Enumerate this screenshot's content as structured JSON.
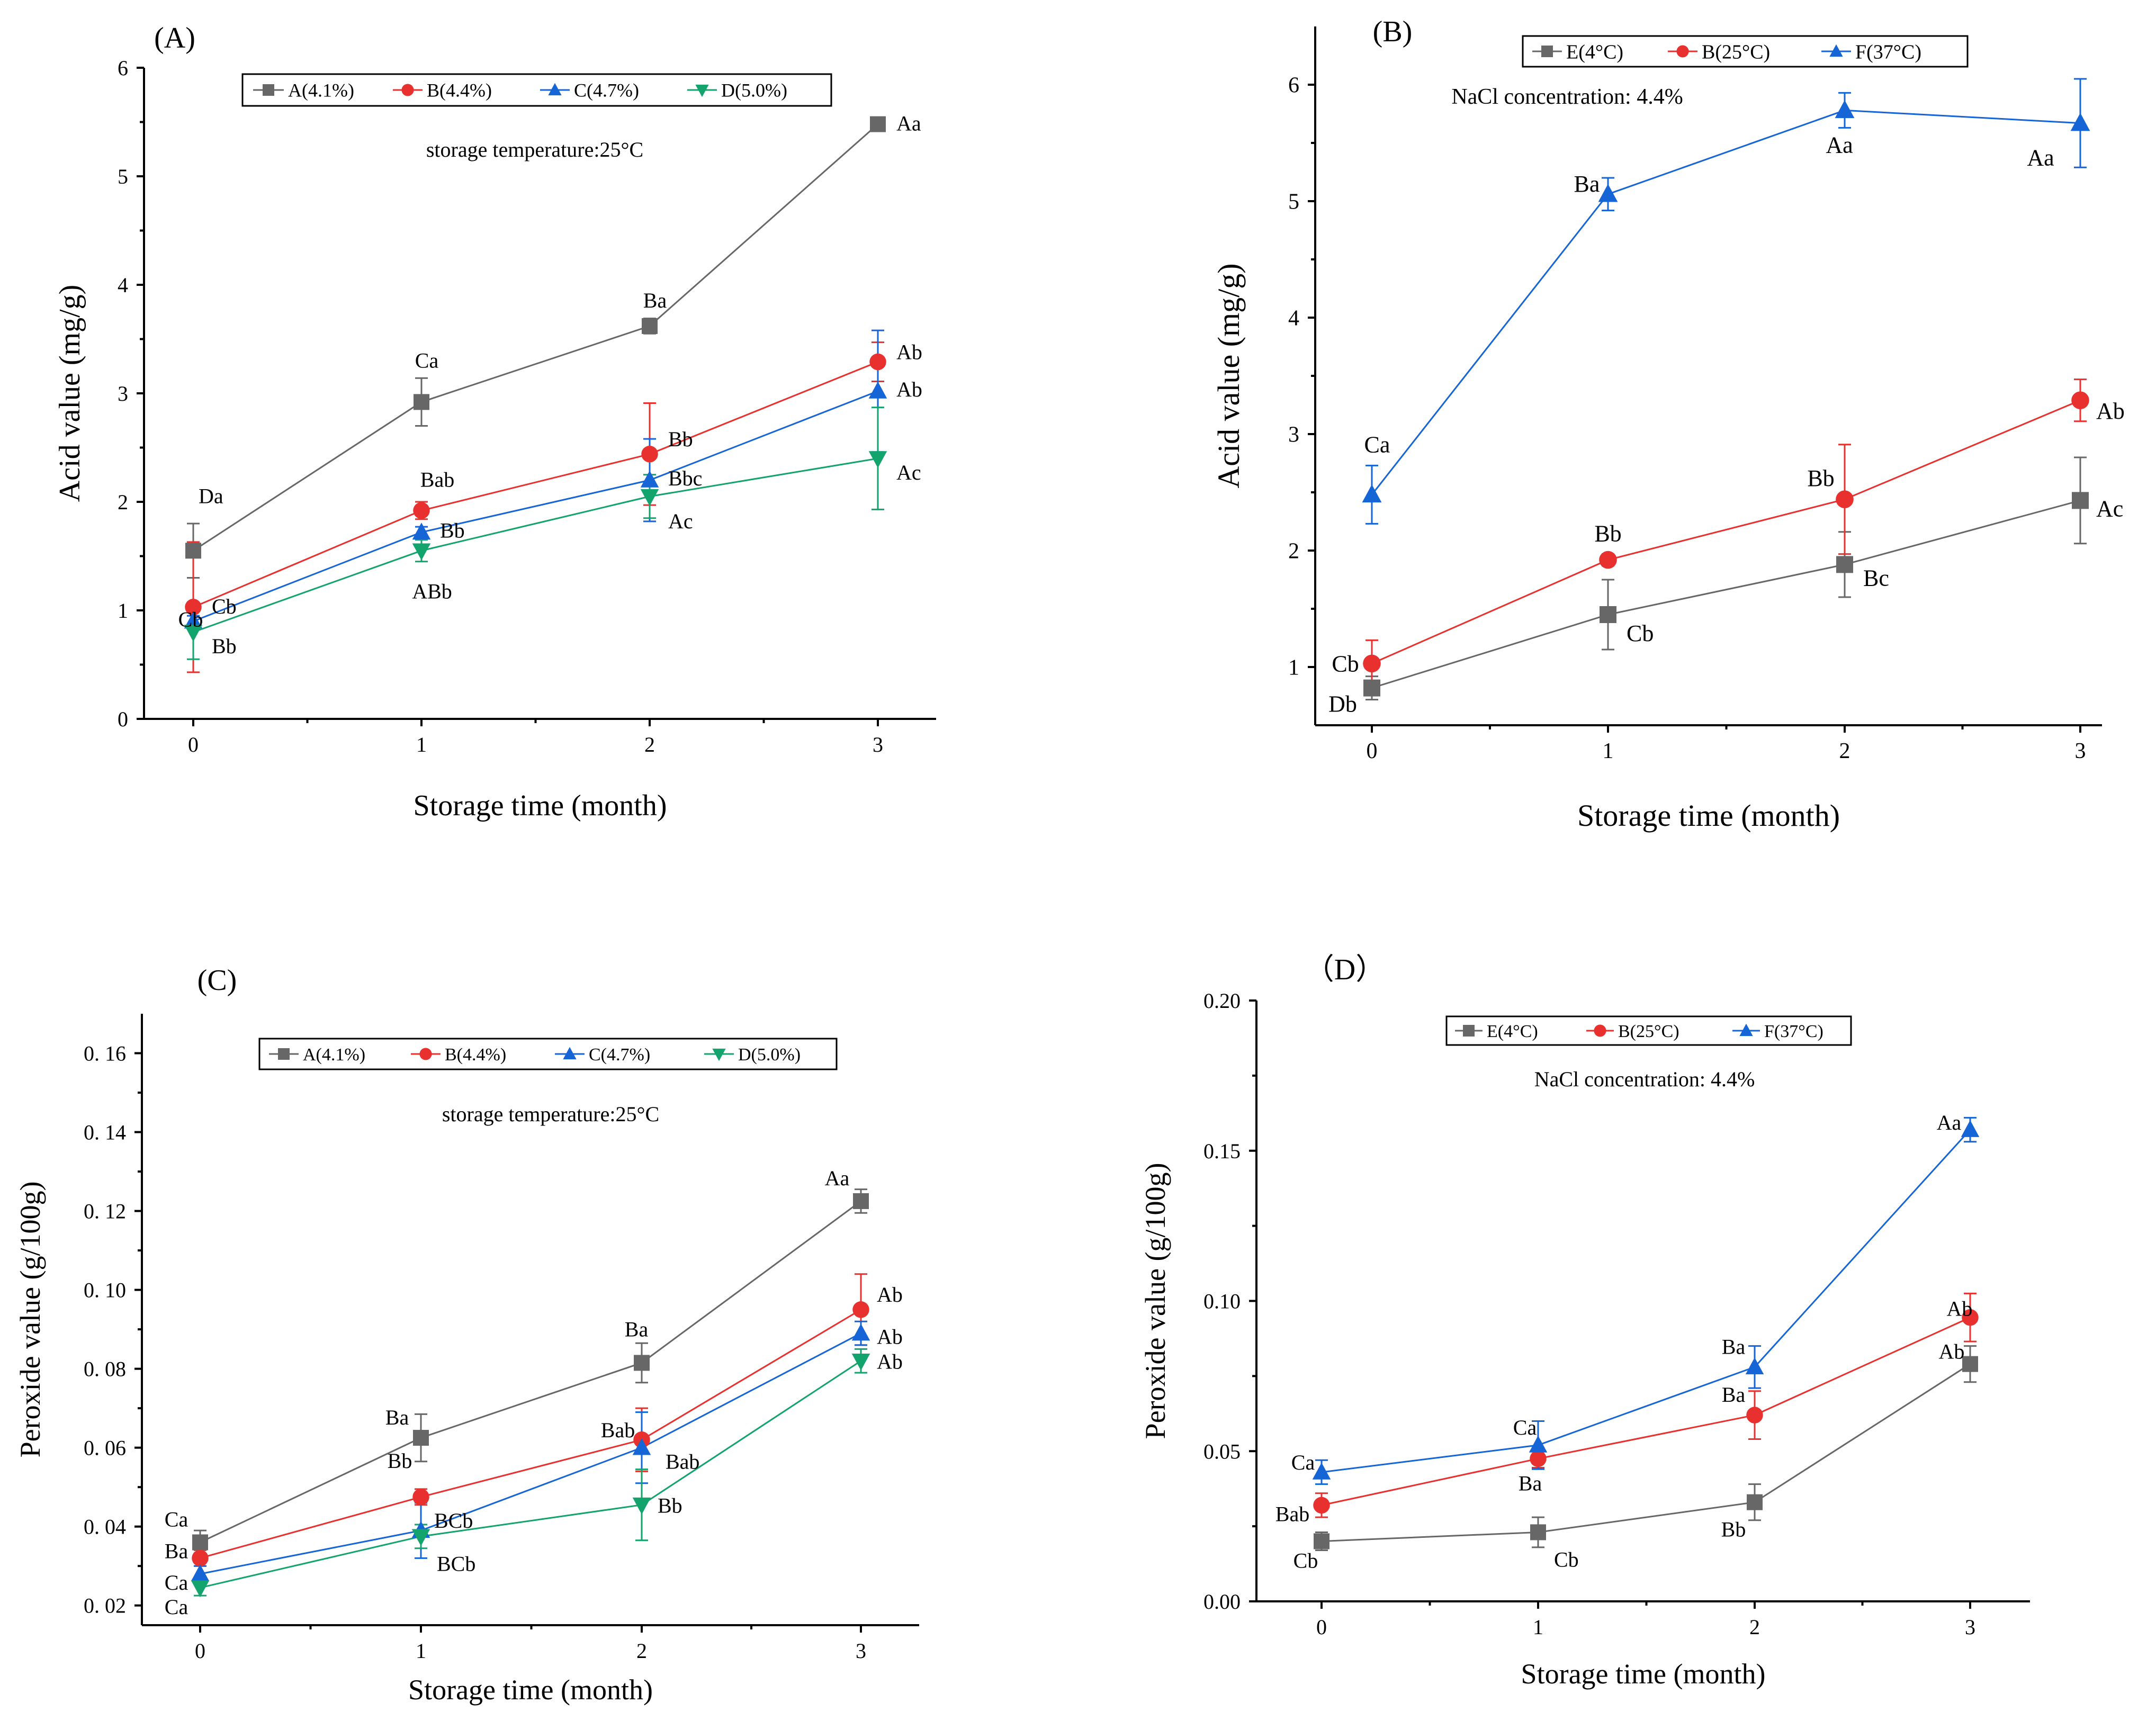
{
  "colors": {
    "A": "#676767",
    "E": "#676767",
    "B": "#e8302f",
    "C": "#1565d6",
    "F": "#1565d6",
    "D": "#13a36c"
  },
  "chart_data": [
    {
      "id": "A",
      "type": "line",
      "panel_label": "(A)",
      "xlabel": "Storage time (month)",
      "ylabel": "Acid value (mg/g)",
      "categories": [
        "0",
        "1",
        "2",
        "3"
      ],
      "ylim": [
        0,
        6
      ],
      "yticks": [
        0,
        1,
        2,
        3,
        4,
        5,
        6
      ],
      "ytick_labels": [
        "0",
        "1",
        "2",
        "3",
        "4",
        "5",
        "6"
      ],
      "annotation": "storage temperature:25°C",
      "legend_position": "top",
      "series": [
        {
          "key": "A",
          "name": "A(4.1%)",
          "marker": "square",
          "values": [
            1.55,
            2.92,
            3.62,
            5.48
          ],
          "errors": [
            0.25,
            0.22,
            0.07,
            0
          ],
          "letters": [
            "Da",
            "Ca",
            "Ba",
            "Aa"
          ]
        },
        {
          "key": "B",
          "name": "B(4.4%)",
          "marker": "circle",
          "values": [
            1.03,
            1.92,
            2.44,
            3.29
          ],
          "errors": [
            0.6,
            0.08,
            0.47,
            0.18
          ],
          "letters": [
            "Cb",
            "Bab",
            "Bb",
            "Ab"
          ]
        },
        {
          "key": "C",
          "name": "C(4.7%)",
          "marker": "triangle-up",
          "values": [
            0.9,
            1.72,
            2.2,
            3.02
          ],
          "errors": [
            0.05,
            0.05,
            0.38,
            0.56
          ],
          "letters": [
            "Cb",
            "Bb",
            "Bbc",
            "Ab"
          ]
        },
        {
          "key": "D",
          "name": "D(5.0%)",
          "marker": "triangle-down",
          "values": [
            0.8,
            1.55,
            2.05,
            2.4
          ],
          "errors": [
            0.25,
            0.1,
            0.2,
            0.47
          ],
          "letters": [
            "Bb",
            "ABb",
            "Ac",
            "Ac"
          ]
        }
      ]
    },
    {
      "id": "B",
      "type": "line",
      "panel_label": "(B)",
      "xlabel": "Storage time (month)",
      "ylabel": "Acid value (mg/g)",
      "categories": [
        "0",
        "1",
        "2",
        "3"
      ],
      "ylim": [
        0.5,
        6.5
      ],
      "yticks": [
        1,
        2,
        3,
        4,
        5,
        6
      ],
      "ytick_labels": [
        "1",
        "2",
        "3",
        "4",
        "5",
        "6"
      ],
      "annotation": "NaCl concentration: 4.4%",
      "legend_position": "top",
      "series": [
        {
          "key": "E",
          "name": "E(4°C)",
          "marker": "square",
          "values": [
            0.82,
            1.45,
            1.88,
            2.43
          ],
          "errors": [
            0.1,
            0.3,
            0.28,
            0.37
          ],
          "letters": [
            "Db",
            "Cb",
            "Bc",
            "Ac"
          ]
        },
        {
          "key": "B",
          "name": "B(25°C)",
          "marker": "circle",
          "values": [
            1.03,
            1.92,
            2.44,
            3.29
          ],
          "errors": [
            0.2,
            0.05,
            0.47,
            0.18
          ],
          "letters": [
            "Cb",
            "Bb",
            "Bb",
            "Ab"
          ]
        },
        {
          "key": "F",
          "name": "F(37°C)",
          "marker": "triangle-up",
          "values": [
            2.48,
            5.06,
            5.78,
            5.67
          ],
          "errors": [
            0.25,
            0.14,
            0.15,
            0.38
          ],
          "letters": [
            "Ca",
            "Ba",
            "Aa",
            "Aa"
          ]
        }
      ]
    },
    {
      "id": "C",
      "type": "line",
      "panel_label": "(C)",
      "xlabel": "Storage time (month)",
      "ylabel": "Peroxide value (g/100g)",
      "categories": [
        "0",
        "1",
        "2",
        "3"
      ],
      "ylim": [
        0.015,
        0.17
      ],
      "yticks": [
        0.02,
        0.04,
        0.06,
        0.08,
        0.1,
        0.12,
        0.14,
        0.16
      ],
      "ytick_labels": [
        "0. 02",
        "0. 04",
        "0. 06",
        "0. 08",
        "0. 10",
        "0. 12",
        "0. 14",
        "0. 16"
      ],
      "annotation": "storage temperature:25°C",
      "legend_position": "top",
      "series": [
        {
          "key": "A",
          "name": "A(4.1%)",
          "marker": "square",
          "values": [
            0.036,
            0.0625,
            0.0815,
            0.1225
          ],
          "errors": [
            0.003,
            0.006,
            0.005,
            0.003
          ],
          "letters": [
            "Ca",
            "Ba",
            "Ba",
            "Aa"
          ]
        },
        {
          "key": "B",
          "name": "B(4.4%)",
          "marker": "circle",
          "values": [
            0.032,
            0.0475,
            0.062,
            0.095
          ],
          "errors": [
            0.002,
            0.002,
            0.008,
            0.009
          ],
          "letters": [
            "Ba",
            "Bb",
            "Bab",
            "Ab"
          ]
        },
        {
          "key": "C",
          "name": "C(4.7%)",
          "marker": "triangle-up",
          "values": [
            0.028,
            0.039,
            0.06,
            0.089
          ],
          "errors": [
            0.002,
            0.007,
            0.009,
            0.003
          ],
          "letters": [
            "Ca",
            "BCb",
            "Bab",
            "Ab"
          ]
        },
        {
          "key": "D",
          "name": "D(5.0%)",
          "marker": "triangle-down",
          "values": [
            0.0245,
            0.0375,
            0.0455,
            0.082
          ],
          "errors": [
            0.002,
            0.003,
            0.009,
            0.003
          ],
          "letters": [
            "Ca",
            "BCb",
            "Bb",
            "Ab"
          ]
        }
      ]
    },
    {
      "id": "D",
      "type": "line",
      "panel_label": "（D）",
      "xlabel": "Storage time (month)",
      "ylabel": "Peroxide value (g/100g)",
      "categories": [
        "0",
        "1",
        "2",
        "3"
      ],
      "ylim": [
        0,
        0.2
      ],
      "yticks": [
        0,
        0.05,
        0.1,
        0.15,
        0.2
      ],
      "ytick_labels": [
        "0.00",
        "0.05",
        "0.10",
        "0.15",
        "0.20"
      ],
      "annotation": "NaCl concentration: 4.4%",
      "legend_position": "top",
      "series": [
        {
          "key": "E",
          "name": "E(4°C)",
          "marker": "square",
          "values": [
            0.02,
            0.023,
            0.033,
            0.079
          ],
          "errors": [
            0.003,
            0.005,
            0.006,
            0.006
          ],
          "letters": [
            "Cb",
            "Cb",
            "Bb",
            "Ab"
          ]
        },
        {
          "key": "B",
          "name": "B(25°C)",
          "marker": "circle",
          "values": [
            0.032,
            0.0475,
            0.062,
            0.0945
          ],
          "errors": [
            0.004,
            0.003,
            0.008,
            0.008
          ],
          "letters": [
            "Bab",
            "Ba",
            "Ba",
            "Ab"
          ]
        },
        {
          "key": "F",
          "name": "F(37°C)",
          "marker": "triangle-up",
          "values": [
            0.043,
            0.052,
            0.078,
            0.157
          ],
          "errors": [
            0.004,
            0.008,
            0.007,
            0.004
          ],
          "letters": [
            "Ca",
            "Ca",
            "Ba",
            "Aa"
          ]
        }
      ]
    }
  ]
}
